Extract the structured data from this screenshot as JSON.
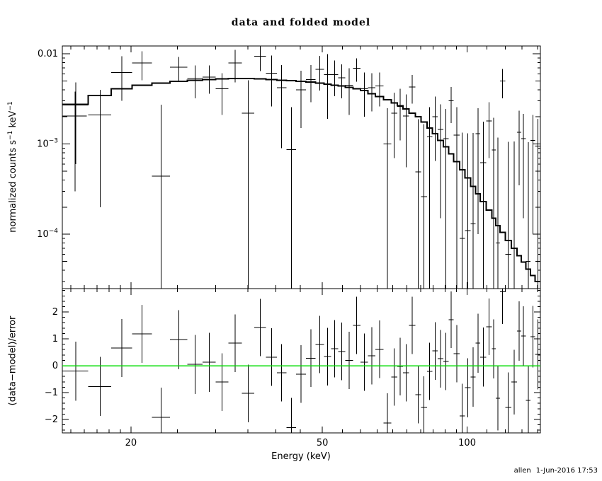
{
  "footer": {
    "user": "allen",
    "datetime": "1-Jun-2016 17:53"
  },
  "chart_data": [
    {
      "id": "spectrum",
      "type": "scatter",
      "title": "data and folded model",
      "ylabel_parts": [
        "normalized counts s",
        "−1",
        " keV",
        "−1"
      ],
      "xscale": "log",
      "yscale": "log",
      "xlim": [
        14.4,
        142
      ],
      "ylim": [
        2.5e-05,
        0.0122
      ],
      "grid": false,
      "yticks_major": [
        0.01,
        0.001,
        0.0001
      ],
      "ytick_labels": [
        {
          "t": "0.01"
        },
        {
          "t": "10",
          "sup": "−3"
        },
        {
          "t": "10",
          "sup": "−4"
        }
      ],
      "series": [
        {
          "name": "data",
          "type": "errorbar",
          "color": "#000000",
          "x": [
            15.35,
            17.25,
            19.15,
            21.1,
            23.1,
            25.15,
            27.2,
            29.1,
            30.95,
            32.95,
            35.05,
            37.15,
            39.2,
            41.15,
            43.1,
            45.15,
            47.3,
            49.4,
            51.25,
            53.0,
            54.85,
            56.85,
            58.95,
            61.1,
            63.35,
            65.75,
            68.25,
            70.55,
            72.6,
            74.65,
            76.85,
            79.1,
            81.35,
            83.6,
            85.8,
            88.05,
            90.35,
            92.65,
            95.1,
            97.7,
            100.3,
            102.85,
            105.3,
            108.0,
            111.0,
            113.55,
            115.8,
            118.5,
            121.75,
            125.25,
            128.25,
            131.0,
            134.0,
            137.0,
            140.25,
            15.3
          ],
          "xerr": [
            0.95,
            0.95,
            0.95,
            1.0,
            1.0,
            1.05,
            1.0,
            0.9,
            0.95,
            1.05,
            1.05,
            1.05,
            1.0,
            0.95,
            1.0,
            1.05,
            1.1,
            1.0,
            0.85,
            0.9,
            0.95,
            1.05,
            1.05,
            1.1,
            1.15,
            1.25,
            1.25,
            1.05,
            1.0,
            1.05,
            1.15,
            1.1,
            1.15,
            1.1,
            1.1,
            1.15,
            1.15,
            1.15,
            1.3,
            1.3,
            1.3,
            1.25,
            1.2,
            1.5,
            1.5,
            1.05,
            1.2,
            1.5,
            1.75,
            1.75,
            1.25,
            1.5,
            1.5,
            1.5,
            1.75,
            0.9
          ],
          "y": [
            0.0027,
            0.0021,
            0.0062,
            0.0079,
            0.00044,
            0.0071,
            0.0053,
            0.0055,
            0.0041,
            0.0079,
            0.0022,
            0.0094,
            0.0061,
            0.0042,
            0.00087,
            0.004,
            0.0052,
            0.0067,
            0.0059,
            0.0059,
            0.0054,
            0.0045,
            0.0069,
            0.0041,
            0.0042,
            0.0044,
            0.001,
            0.0022,
            0.0026,
            0.00205,
            0.0043,
            0.00049,
            0.00026,
            0.0012,
            0.002,
            0.00145,
            0.00115,
            0.003,
            0.00125,
            9e-05,
            0.00011,
            0.00013,
            0.0013,
            0.00062,
            0.0018,
            0.00086,
            8e-05,
            0.005,
            6e-05,
            7e-05,
            0.00135,
            0.00115,
            5e-05,
            0.0011,
            0.00095,
            0.00205
          ],
          "yerr": [
            0.0021,
            0.0019,
            0.0032,
            0.0028,
            0.0023,
            0.0021,
            0.0021,
            0.0019,
            0.002,
            0.0031,
            0.0029,
            0.003,
            0.0035,
            0.0033,
            0.0017,
            0.0025,
            0.0023,
            0.0028,
            0.004,
            0.0025,
            0.0022,
            0.0024,
            0.002,
            0.0021,
            0.0019,
            0.0018,
            0.0015,
            0.0015,
            0.0015,
            0.0015,
            0.0015,
            0.0014,
            0.0014,
            0.00135,
            0.00135,
            0.0013,
            0.0013,
            0.0013,
            0.0013,
            0.00125,
            0.0012,
            0.0012,
            0.0012,
            0.00115,
            0.0011,
            0.0011,
            0.0011,
            0.0018,
            0.001,
            0.001,
            0.001,
            0.001,
            0.001,
            0.001,
            0.00095,
            0.00175
          ]
        },
        {
          "name": "folded model",
          "type": "step",
          "color": "#000000",
          "bin_edges": [
            14.4,
            16.3,
            18.2,
            20.1,
            22.1,
            24.1,
            26.2,
            28.2,
            30.0,
            31.9,
            34.0,
            36.1,
            38.2,
            40.2,
            42.1,
            44.1,
            46.2,
            48.4,
            50.4,
            52.1,
            53.9,
            55.8,
            57.9,
            60.0,
            62.2,
            64.5,
            67.0,
            69.5,
            71.6,
            73.6,
            75.7,
            78.0,
            80.2,
            82.5,
            84.7,
            86.9,
            89.2,
            91.5,
            93.8,
            96.4,
            99.0,
            101.6,
            104.1,
            106.5,
            109.5,
            112.5,
            114.6,
            117.0,
            120.0,
            123.5,
            127.0,
            129.5,
            132.5,
            135.5,
            138.5,
            142.0
          ],
          "y": [
            0.00275,
            0.00345,
            0.0041,
            0.0045,
            0.00475,
            0.00495,
            0.0051,
            0.0052,
            0.00525,
            0.0053,
            0.0053,
            0.00525,
            0.0052,
            0.0051,
            0.00505,
            0.00495,
            0.00485,
            0.00475,
            0.0046,
            0.0045,
            0.0044,
            0.00425,
            0.0041,
            0.0039,
            0.0036,
            0.00335,
            0.0031,
            0.00285,
            0.00265,
            0.00245,
            0.0022,
            0.002,
            0.00175,
            0.0015,
            0.0013,
            0.0011,
            0.00093,
            0.00078,
            0.00064,
            0.00052,
            0.00042,
            0.00034,
            0.00028,
            0.00023,
            0.000185,
            0.00015,
            0.000125,
            0.000105,
            8.5e-05,
            7e-05,
            5.8e-05,
            4.9e-05,
            4.1e-05,
            3.5e-05,
            3e-05
          ]
        }
      ]
    },
    {
      "id": "residuals",
      "type": "scatter",
      "xlabel": "Energy (keV)",
      "ylabel": "(data−model)/error",
      "xscale": "log",
      "xlim": [
        14.4,
        142
      ],
      "ylim": [
        -2.5,
        2.87
      ],
      "grid": false,
      "xticks_major": [
        20,
        50,
        100
      ],
      "xtick_labels": [
        "20",
        "50",
        "100"
      ],
      "xticks_minor": [
        15,
        16,
        17,
        18,
        19,
        25,
        30,
        35,
        40,
        45,
        55,
        60,
        65,
        70,
        75,
        80,
        85,
        90,
        95,
        110,
        120,
        130,
        140
      ],
      "yticks_major": [
        2,
        1,
        0,
        -1,
        -2
      ],
      "ytick_labels": [
        "2",
        "1",
        "0",
        "−1",
        "−2"
      ],
      "zero_line": {
        "y": 0,
        "color": "#00dd00"
      },
      "series": [
        {
          "name": "(data-model)/error",
          "type": "errorbar",
          "color": "#000000",
          "x": [
            15.35,
            17.25,
            19.15,
            21.1,
            23.1,
            25.15,
            27.2,
            29.1,
            30.95,
            32.95,
            35.05,
            37.15,
            39.2,
            41.15,
            43.1,
            45.15,
            47.3,
            49.4,
            51.25,
            53.0,
            54.85,
            56.85,
            58.95,
            61.1,
            63.35,
            65.75,
            68.25,
            70.55,
            72.6,
            74.65,
            76.85,
            79.1,
            81.35,
            83.6,
            85.8,
            88.05,
            90.35,
            92.65,
            95.1,
            97.7,
            100.3,
            102.85,
            105.3,
            108.0,
            111.0,
            113.55,
            115.8,
            118.5,
            121.75,
            125.25,
            128.25,
            131.0,
            134.0,
            137.0,
            140.25
          ],
          "xerr": [
            0.95,
            0.95,
            0.95,
            1.0,
            1.0,
            1.05,
            1.0,
            0.9,
            0.95,
            1.05,
            1.05,
            1.05,
            1.0,
            0.95,
            1.0,
            1.05,
            1.1,
            1.0,
            0.85,
            0.9,
            0.95,
            1.05,
            1.05,
            1.1,
            1.15,
            1.25,
            1.25,
            1.05,
            1.0,
            1.05,
            1.15,
            1.1,
            1.15,
            1.1,
            1.1,
            1.15,
            1.15,
            1.15,
            1.3,
            1.3,
            1.3,
            1.25,
            1.2,
            1.5,
            1.5,
            1.05,
            1.2,
            1.5,
            1.75,
            1.75,
            1.25,
            1.5,
            1.5,
            1.5,
            1.75
          ],
          "y": [
            -0.2,
            -0.77,
            0.66,
            1.18,
            -1.92,
            0.97,
            0.05,
            0.13,
            -0.61,
            0.84,
            -1.03,
            1.42,
            0.32,
            -0.26,
            -2.3,
            -0.31,
            0.28,
            0.79,
            0.34,
            0.63,
            0.53,
            0.2,
            1.5,
            0.13,
            0.37,
            0.61,
            -2.13,
            -0.42,
            -0.03,
            -0.26,
            1.5,
            -1.08,
            -1.55,
            -0.21,
            0.55,
            0.26,
            0.16,
            1.71,
            0.45,
            -1.87,
            -0.82,
            -0.42,
            0.84,
            0.32,
            1.45,
            0.63,
            -1.21,
            2.75,
            -1.55,
            -0.61,
            1.29,
            1.11,
            -1.29,
            1.08,
            0.42
          ],
          "yerr": [
            1.1,
            1.1,
            1.08,
            1.08,
            1.1,
            1.1,
            1.1,
            1.1,
            1.07,
            1.07,
            1.07,
            1.07,
            1.07,
            1.07,
            1.1,
            1.07,
            1.07,
            1.07,
            1.07,
            1.07,
            1.07,
            1.07,
            1.07,
            1.07,
            1.07,
            1.07,
            1.1,
            1.07,
            1.07,
            1.07,
            1.07,
            1.07,
            1.15,
            1.07,
            1.07,
            1.07,
            1.07,
            1.05,
            1.07,
            1.2,
            1.1,
            1.1,
            1.1,
            1.1,
            1.05,
            1.1,
            1.2,
            1.2,
            1.3,
            1.2,
            1.1,
            1.1,
            1.3,
            1.15,
            1.3
          ]
        }
      ]
    }
  ]
}
